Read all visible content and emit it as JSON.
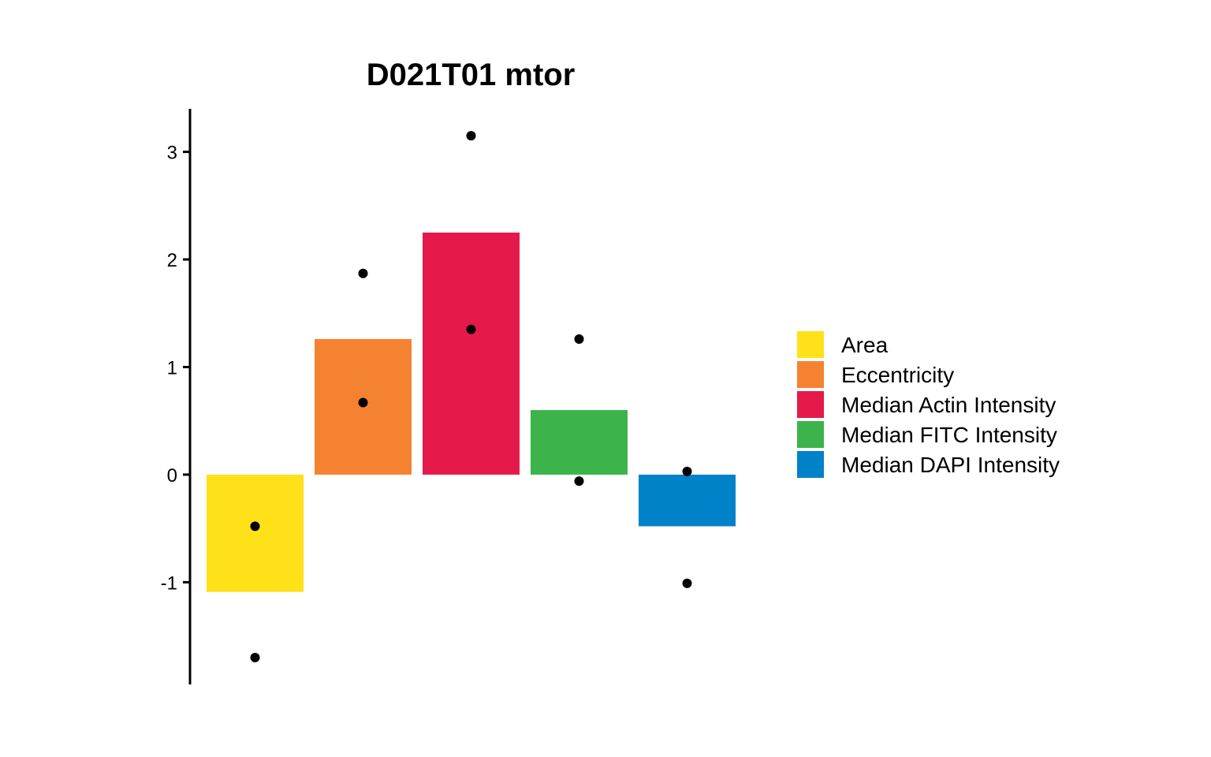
{
  "chart_data": {
    "type": "bar",
    "title": "D021T01 mtor",
    "xlabel": "",
    "ylabel": "",
    "ylim": [
      -1.95,
      3.4
    ],
    "y_ticks": [
      -1,
      0,
      1,
      2,
      3
    ],
    "y_tick_labels": [
      "-1",
      "0",
      "1",
      "2",
      "3"
    ],
    "grid": false,
    "legend_placement": "right",
    "categories": [
      "Area",
      "Eccentricity",
      "Median Actin Intensity",
      "Median FITC Intensity",
      "Median DAPI Intensity"
    ],
    "colors": [
      "#FFE119",
      "#F58231",
      "#E6194B",
      "#3CB44B",
      "#0082C8"
    ],
    "values": [
      -1.09,
      1.26,
      2.25,
      0.6,
      -0.48
    ],
    "points": [
      [
        -0.48,
        -1.7
      ],
      [
        1.87,
        0.67
      ],
      [
        3.15,
        1.35
      ],
      [
        1.26,
        -0.06
      ],
      [
        0.03,
        -1.01
      ]
    ]
  }
}
